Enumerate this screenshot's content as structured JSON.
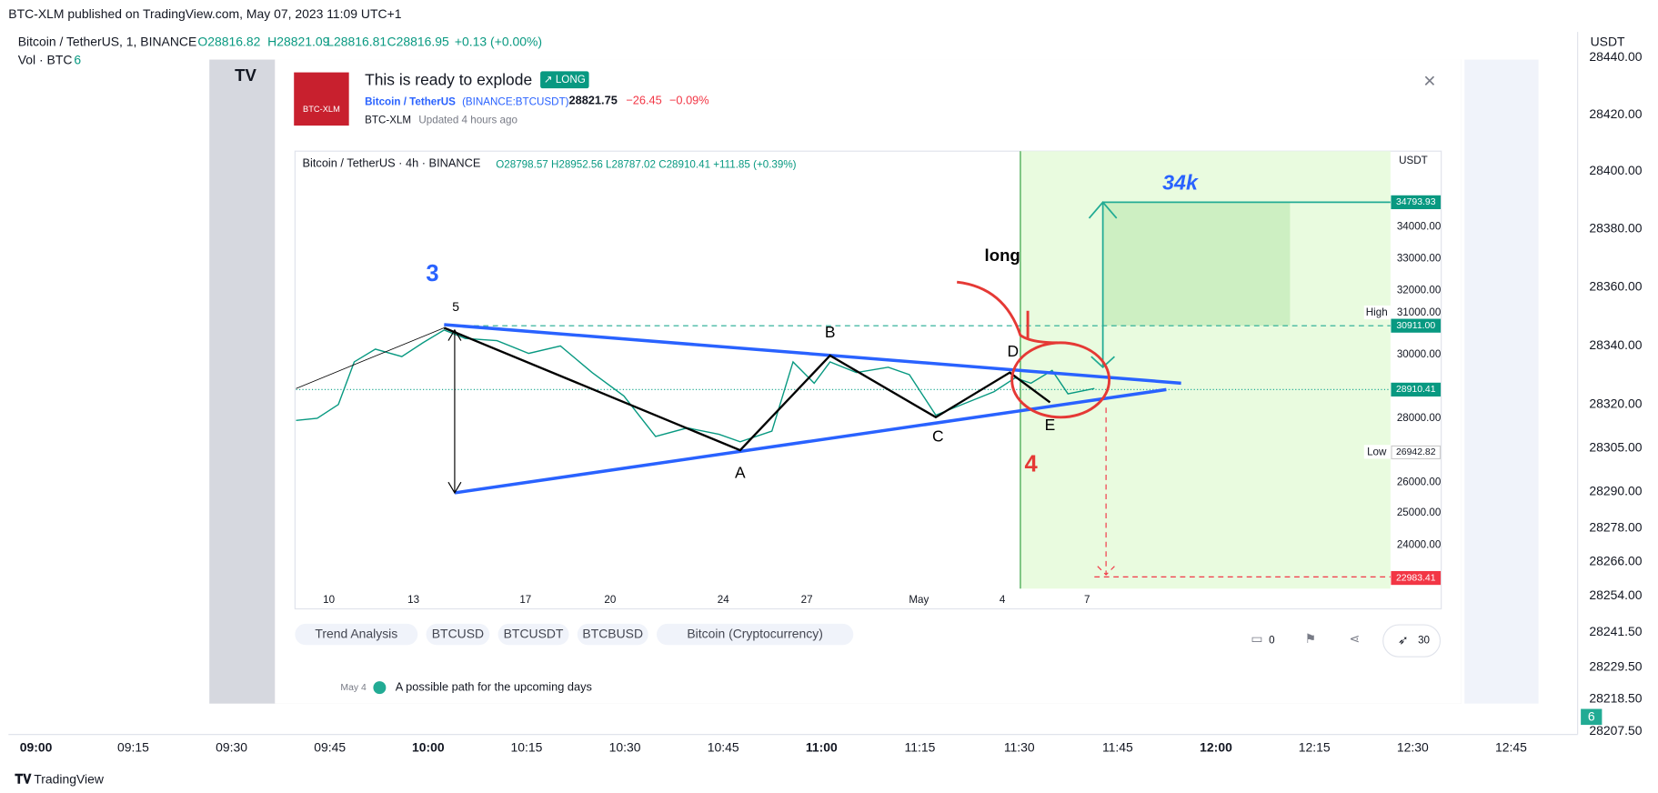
{
  "header": {
    "published": "BTC-XLM published on TradingView.com, May 07, 2023 11:09 UTC+1",
    "symbol": "Bitcoin / TetherUS, 1, BINANCE",
    "open": "O28816.82",
    "high": "H28821.09",
    "low": "L28816.81",
    "close": "C28816.95",
    "change": "+0.13 (+0.00%)",
    "volume_label": "Vol · BTC",
    "volume_value": "6"
  },
  "price_axis": {
    "unit": "USDT",
    "labels": [
      "28440.00",
      "28420.00",
      "28400.00",
      "28380.00",
      "28360.00",
      "28340.00",
      "28320.00",
      "28305.00",
      "28290.00",
      "28278.00",
      "28266.00",
      "28254.00",
      "28241.50",
      "28229.50",
      "28218.50",
      "28207.50"
    ],
    "badge": "6"
  },
  "time_axis": [
    "09:00",
    "09:15",
    "09:30",
    "09:45",
    "10:00",
    "10:15",
    "10:30",
    "10:45",
    "11:00",
    "11:15",
    "11:30",
    "11:45",
    "12:00",
    "12:15",
    "12:30",
    "12:45"
  ],
  "footer": "TradingView",
  "idea": {
    "avatar": "BTC-XLM",
    "title": "This is ready to explode",
    "badge": "↗ LONG",
    "symbol": "Bitcoin / TetherUS",
    "ticker": "(BINANCE:BTCUSDT)",
    "price": "28821.75",
    "change": "−26.45",
    "change_pct": "−0.09%",
    "author": "BTC-XLM",
    "updated": "Updated 4 hours ago",
    "chart": {
      "header": "Bitcoin / TetherUS · 4h · BINANCE",
      "ohlc": "O28798.57 H28952.56 L28787.02 C28910.41 +111.85 (+0.39%)",
      "unit": "USDT",
      "y_labels": [
        "34000.00",
        "33000.00",
        "32000.00",
        "31000.00",
        "30000.00",
        "28000.00",
        "26000.00",
        "25000.00",
        "24000.00"
      ],
      "badges": {
        "target": "34793.93",
        "entry": "30911.00",
        "last": "28910.41",
        "low": "26942.82",
        "stop": "22983.41"
      },
      "high_label": "High",
      "low_label": "Low",
      "x_labels": [
        "10",
        "13",
        "17",
        "20",
        "24",
        "27",
        "May",
        "4",
        "7"
      ],
      "annotations": {
        "wave3": "3",
        "wave4": "4",
        "p5": "5",
        "A": "A",
        "B": "B",
        "C": "C",
        "D": "D",
        "E": "E",
        "long": "long",
        "target": "34k"
      }
    },
    "tags": [
      "Trend Analysis",
      "BTCUSD",
      "BTCUSDT",
      "BTCBUSD",
      "Bitcoin (Cryptocurrency)"
    ],
    "comments": "0",
    "boosts": "30",
    "update": {
      "date": "May 4",
      "text": "A possible path for the upcoming days"
    }
  }
}
